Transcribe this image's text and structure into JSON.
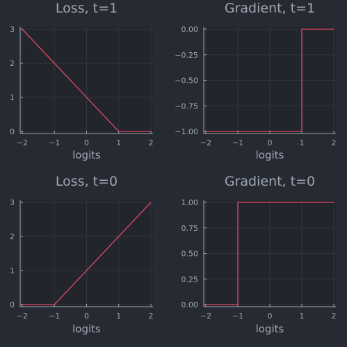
{
  "figure": {
    "background": "#262a33",
    "plot_background": "#22252c",
    "axis_color": "#a1a7b1",
    "grid_color": "#31353d",
    "text_color": "#a1a7b1",
    "line_color": "#e24766"
  },
  "chart_data": [
    {
      "type": "line",
      "title": "Loss, t=1",
      "xlabel": "logits",
      "ylabel": "",
      "xlim": [
        -2,
        2
      ],
      "ylim": [
        0,
        3
      ],
      "xticks": [
        -2,
        -1,
        0,
        1,
        2
      ],
      "xtick_labels": [
        "−2",
        "−1",
        "0",
        "1",
        "2"
      ],
      "yticks": [
        0,
        1,
        2,
        3
      ],
      "ytick_labels": [
        "0",
        "1",
        "2",
        "3"
      ],
      "grid": true,
      "series": [
        {
          "x": [
            -2,
            1,
            2
          ],
          "y": [
            3,
            0,
            0
          ]
        }
      ]
    },
    {
      "type": "line",
      "title": "Gradient, t=1",
      "xlabel": "logits",
      "ylabel": "",
      "xlim": [
        -2,
        2
      ],
      "ylim": [
        -1,
        0
      ],
      "xticks": [
        -2,
        -1,
        0,
        1,
        2
      ],
      "xtick_labels": [
        "−2",
        "−1",
        "0",
        "1",
        "2"
      ],
      "yticks": [
        -1,
        -0.75,
        -0.5,
        -0.25,
        0
      ],
      "ytick_labels": [
        "−1.00",
        "−0.75",
        "−0.50",
        "−0.25",
        "0.00"
      ],
      "grid": true,
      "series": [
        {
          "x": [
            -2,
            1,
            1,
            2
          ],
          "y": [
            -1,
            -1,
            0,
            0
          ]
        }
      ]
    },
    {
      "type": "line",
      "title": "Loss, t=0",
      "xlabel": "logits",
      "ylabel": "",
      "xlim": [
        -2,
        2
      ],
      "ylim": [
        0,
        3
      ],
      "xticks": [
        -2,
        -1,
        0,
        1,
        2
      ],
      "xtick_labels": [
        "−2",
        "−1",
        "0",
        "1",
        "2"
      ],
      "yticks": [
        0,
        1,
        2,
        3
      ],
      "ytick_labels": [
        "0",
        "1",
        "2",
        "3"
      ],
      "grid": true,
      "series": [
        {
          "x": [
            -2,
            -1,
            2
          ],
          "y": [
            0,
            0,
            3
          ]
        }
      ]
    },
    {
      "type": "line",
      "title": "Gradient, t=0",
      "xlabel": "logits",
      "ylabel": "",
      "xlim": [
        -2,
        2
      ],
      "ylim": [
        0,
        1
      ],
      "xticks": [
        -2,
        -1,
        0,
        1,
        2
      ],
      "xtick_labels": [
        "−2",
        "−1",
        "0",
        "1",
        "2"
      ],
      "yticks": [
        0,
        0.25,
        0.5,
        0.75,
        1
      ],
      "ytick_labels": [
        "0.00",
        "0.25",
        "0.50",
        "0.75",
        "1.00"
      ],
      "grid": true,
      "series": [
        {
          "x": [
            -2,
            -1,
            -1,
            2
          ],
          "y": [
            0,
            0,
            1,
            1
          ]
        }
      ]
    }
  ]
}
